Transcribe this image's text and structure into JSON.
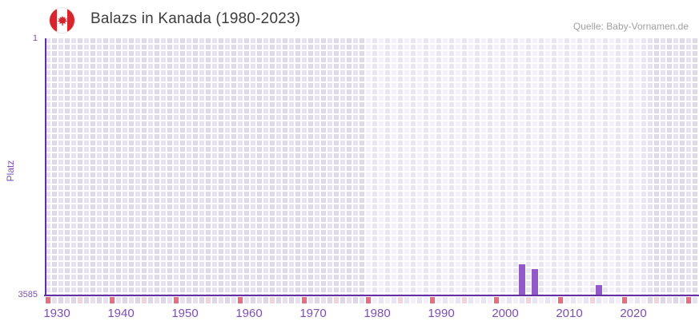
{
  "header": {
    "title": "Balazs in Kanada (1980-2023)",
    "source": "Quelle: Baby-Vornamen.de"
  },
  "chart_data": {
    "type": "bar",
    "title": "Balazs in Kanada (1980-2023)",
    "xlabel": "",
    "ylabel": "Platz",
    "y_axis": {
      "top_tick_label": "1",
      "bottom_tick_label": "3585",
      "min": 1,
      "max": 3585,
      "inverted": true
    },
    "x_axis": {
      "first_year": 1930,
      "last_year": 2032,
      "labeled_tick_years": [
        1930,
        1940,
        1950,
        1960,
        1970,
        1980,
        1990,
        2000,
        2010,
        2020
      ],
      "major_tick_years": [
        1930,
        1940,
        1950,
        1960,
        1970,
        1980,
        1990,
        2000,
        2010,
        2020,
        2030
      ],
      "minor_tick_years": [
        1935,
        1945,
        1955,
        1965,
        1975,
        1985,
        1995,
        2005,
        2015,
        2025
      ]
    },
    "highlight_year_range": {
      "from": 1980,
      "to": 2023
    },
    "grid": true,
    "legend": null,
    "series": [
      {
        "name": "Platz",
        "points": [
          {
            "year": 2004,
            "rank": 3160
          },
          {
            "year": 2006,
            "rank": 3230
          },
          {
            "year": 2016,
            "rank": 3450
          }
        ]
      }
    ],
    "colors": {
      "bar": "#915ac8",
      "axis_line": "#6131a4",
      "axis_text": "#7c50b2",
      "major_tick_cell": "#e0717e",
      "minor_tick_cell": "#f3d2db",
      "col_in_range_even": "#f4f1fb",
      "col_in_range_odd": "#eae5f5",
      "col_out_range_even": "#e7e2f0",
      "col_out_range_odd": "#ded8e9",
      "tick_row_in_range_even": "#eae5f4",
      "tick_row_in_range_odd": "#f3f0fa",
      "tick_row_out_range_even": "#ddd7e8",
      "tick_row_out_range_odd": "#e6e1ef",
      "title_text": "#3d3d3d",
      "source_text": "#a0a0a0",
      "flag_red": "#d8242c"
    }
  }
}
